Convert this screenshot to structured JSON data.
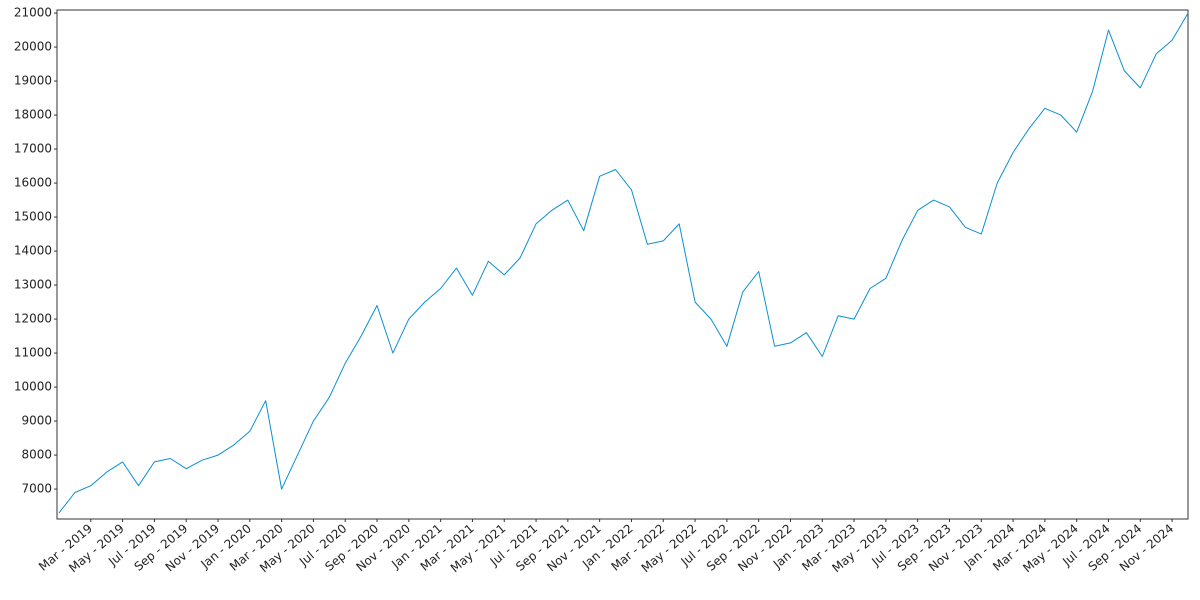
{
  "chart_data": {
    "type": "line",
    "x": [
      "2019-01",
      "2019-02",
      "2019-03",
      "2019-04",
      "2019-05",
      "2019-06",
      "2019-07",
      "2019-08",
      "2019-09",
      "2019-10",
      "2019-11",
      "2019-12",
      "2020-01",
      "2020-02",
      "2020-03",
      "2020-04",
      "2020-05",
      "2020-06",
      "2020-07",
      "2020-08",
      "2020-09",
      "2020-10",
      "2020-11",
      "2020-12",
      "2021-01",
      "2021-02",
      "2021-03",
      "2021-04",
      "2021-05",
      "2021-06",
      "2021-07",
      "2021-08",
      "2021-09",
      "2021-10",
      "2021-11",
      "2021-12",
      "2022-01",
      "2022-02",
      "2022-03",
      "2022-04",
      "2022-05",
      "2022-06",
      "2022-07",
      "2022-08",
      "2022-09",
      "2022-10",
      "2022-11",
      "2022-12",
      "2023-01",
      "2023-02",
      "2023-03",
      "2023-04",
      "2023-05",
      "2023-06",
      "2023-07",
      "2023-08",
      "2023-09",
      "2023-10",
      "2023-11",
      "2023-12",
      "2024-01",
      "2024-02",
      "2024-03",
      "2024-04",
      "2024-05",
      "2024-06",
      "2024-07",
      "2024-08",
      "2024-09",
      "2024-10",
      "2024-11",
      "2024-12"
    ],
    "series": [
      {
        "color": "#0a8fd4",
        "values": [
          6300,
          6900,
          7100,
          7500,
          7800,
          7100,
          7800,
          7900,
          7600,
          7850,
          8000,
          8300,
          8700,
          9600,
          7000,
          8000,
          9000,
          9700,
          10700,
          11500,
          12400,
          11000,
          12000,
          12500,
          12900,
          13500,
          12700,
          13700,
          13300,
          13800,
          14800,
          15200,
          15500,
          14600,
          16200,
          16400,
          15800,
          14200,
          14300,
          14800,
          12500,
          12000,
          11200,
          12800,
          13400,
          11200,
          11300,
          11600,
          10900,
          12100,
          12000,
          12900,
          13200,
          14300,
          15200,
          15500,
          15300,
          14700,
          14500,
          16000,
          16900,
          17600,
          18200,
          18000,
          17500,
          18700,
          20500,
          19300,
          18800,
          19800,
          20200,
          21000
        ]
      }
    ],
    "xlim": [
      "2019-01",
      "2024-12"
    ],
    "xticks": [
      {
        "value": "2019-03",
        "label": "Mar - 2019"
      },
      {
        "value": "2019-05",
        "label": "May - 2019"
      },
      {
        "value": "2019-07",
        "label": "Jul - 2019"
      },
      {
        "value": "2019-09",
        "label": "Sep - 2019"
      },
      {
        "value": "2019-11",
        "label": "Nov - 2019"
      },
      {
        "value": "2020-01",
        "label": "Jan - 2020"
      },
      {
        "value": "2020-03",
        "label": "Mar - 2020"
      },
      {
        "value": "2020-05",
        "label": "May - 2020"
      },
      {
        "value": "2020-07",
        "label": "Jul - 2020"
      },
      {
        "value": "2020-09",
        "label": "Sep - 2020"
      },
      {
        "value": "2020-11",
        "label": "Nov - 2020"
      },
      {
        "value": "2021-01",
        "label": "Jan - 2021"
      },
      {
        "value": "2021-03",
        "label": "Mar - 2021"
      },
      {
        "value": "2021-05",
        "label": "May - 2021"
      },
      {
        "value": "2021-07",
        "label": "Jul - 2021"
      },
      {
        "value": "2021-09",
        "label": "Sep - 2021"
      },
      {
        "value": "2021-11",
        "label": "Nov - 2021"
      },
      {
        "value": "2022-01",
        "label": "Jan - 2022"
      },
      {
        "value": "2022-03",
        "label": "Mar - 2022"
      },
      {
        "value": "2022-05",
        "label": "May - 2022"
      },
      {
        "value": "2022-07",
        "label": "Jul - 2022"
      },
      {
        "value": "2022-09",
        "label": "Sep - 2022"
      },
      {
        "value": "2022-11",
        "label": "Nov - 2022"
      },
      {
        "value": "2023-01",
        "label": "Jan - 2023"
      },
      {
        "value": "2023-03",
        "label": "Mar - 2023"
      },
      {
        "value": "2023-05",
        "label": "May - 2023"
      },
      {
        "value": "2023-07",
        "label": "Jul - 2023"
      },
      {
        "value": "2023-09",
        "label": "Sep - 2023"
      },
      {
        "value": "2023-11",
        "label": "Nov - 2023"
      },
      {
        "value": "2024-01",
        "label": "Jan - 2024"
      },
      {
        "value": "2024-03",
        "label": "Mar - 2024"
      },
      {
        "value": "2024-05",
        "label": "May - 2024"
      },
      {
        "value": "2024-07",
        "label": "Jul - 2024"
      },
      {
        "value": "2024-09",
        "label": "Sep - 2024"
      },
      {
        "value": "2024-11",
        "label": "Nov - 2024"
      }
    ],
    "ylim": [
      6120,
      21090
    ],
    "yticks": [
      7000,
      8000,
      9000,
      10000,
      11000,
      12000,
      13000,
      14000,
      15000,
      16000,
      17000,
      18000,
      19000,
      20000,
      21000
    ]
  }
}
